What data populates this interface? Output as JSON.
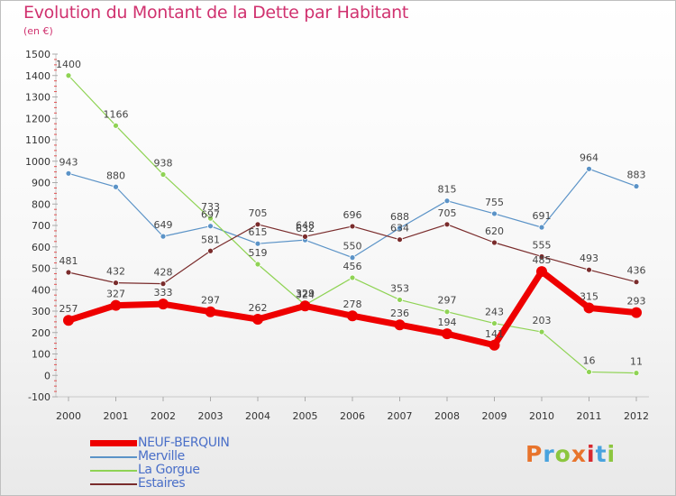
{
  "title": "Evolution du Montant de la Dette par Habitant",
  "subtitle": "(en €)",
  "logo": {
    "text": "Proxiti",
    "colors": [
      "#e8742c",
      "#49a3de",
      "#8cc63f",
      "#e8742c",
      "#d7282f",
      "#49a3de",
      "#8cc63f"
    ]
  },
  "chart_data": {
    "type": "line",
    "x": [
      "2000",
      "2001",
      "2002",
      "2003",
      "2004",
      "2005",
      "2006",
      "2007",
      "2008",
      "2009",
      "2010",
      "2011",
      "2012"
    ],
    "ylim": [
      -100,
      1500
    ],
    "yticks": [
      "-100",
      "0",
      "100",
      "200",
      "300",
      "400",
      "500",
      "600",
      "700",
      "800",
      "900",
      "1000",
      "1100",
      "1200",
      "1300",
      "1400",
      "1500"
    ],
    "legend_position": "bottom-left",
    "grid": false,
    "series": [
      {
        "name": "NEUF-BERQUIN",
        "color": "#ee0000",
        "values": [
          257,
          327,
          333,
          297,
          262,
          324,
          278,
          236,
          194,
          141,
          485,
          315,
          293
        ],
        "labels": [
          "257",
          "327",
          "333",
          "297",
          "262",
          "324",
          "278",
          "236",
          "194",
          "141",
          "485",
          "315",
          "293"
        ]
      },
      {
        "name": "Merville",
        "color": "#5b93c7",
        "values": [
          943,
          880,
          649,
          697,
          615,
          632,
          550,
          688,
          815,
          755,
          691,
          964,
          883
        ],
        "labels": [
          "943",
          "880",
          "649",
          "697",
          "615",
          "632",
          "550",
          "688",
          "815",
          "755",
          "691",
          "964",
          "883"
        ]
      },
      {
        "name": "La Gorgue",
        "color": "#8fd354",
        "values": [
          1400,
          1166,
          938,
          733,
          519,
          329,
          456,
          353,
          297,
          243,
          203,
          16,
          11
        ],
        "labels": [
          "1400",
          "1166",
          "938",
          "733",
          "519",
          "329",
          "456",
          "353",
          "297",
          "243",
          "203",
          "16",
          "11"
        ]
      },
      {
        "name": "Estaires",
        "color": "#7a2c2c",
        "values": [
          481,
          432,
          428,
          581,
          705,
          648,
          696,
          634,
          705,
          620,
          555,
          493,
          436
        ],
        "labels": [
          "481",
          "432",
          "428",
          "581",
          "705",
          "648",
          "696",
          "634",
          "705",
          "620",
          "555",
          "493",
          "436"
        ]
      }
    ]
  }
}
